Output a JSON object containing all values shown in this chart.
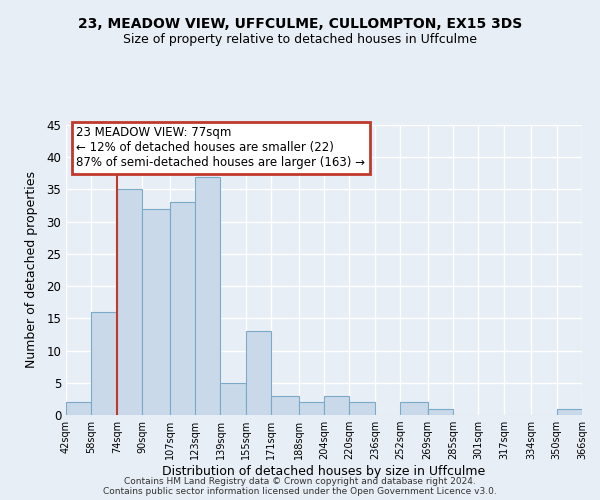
{
  "title": "23, MEADOW VIEW, UFFCULME, CULLOMPTON, EX15 3DS",
  "subtitle": "Size of property relative to detached houses in Uffculme",
  "xlabel": "Distribution of detached houses by size in Uffculme",
  "ylabel": "Number of detached properties",
  "bar_color": "#c9d9ea",
  "bar_edge_color": "#7aaac8",
  "background_color": "#e8eef5",
  "plot_bg_color": "#e8eef5",
  "grid_color": "#ffffff",
  "bin_edges": [
    42,
    58,
    74,
    90,
    107,
    123,
    139,
    155,
    171,
    188,
    204,
    220,
    236,
    252,
    269,
    285,
    301,
    317,
    334,
    350,
    366
  ],
  "bin_labels": [
    "42sqm",
    "58sqm",
    "74sqm",
    "90sqm",
    "107sqm",
    "123sqm",
    "139sqm",
    "155sqm",
    "171sqm",
    "188sqm",
    "204sqm",
    "220sqm",
    "236sqm",
    "252sqm",
    "269sqm",
    "285sqm",
    "301sqm",
    "317sqm",
    "334sqm",
    "350sqm",
    "366sqm"
  ],
  "counts": [
    2,
    16,
    35,
    32,
    33,
    37,
    5,
    13,
    3,
    2,
    3,
    2,
    0,
    2,
    1,
    0,
    0,
    0,
    0,
    1
  ],
  "vline_x": 74,
  "ylim": [
    0,
    45
  ],
  "yticks": [
    0,
    5,
    10,
    15,
    20,
    25,
    30,
    35,
    40,
    45
  ],
  "annotation_title": "23 MEADOW VIEW: 77sqm",
  "annotation_line1": "← 12% of detached houses are smaller (22)",
  "annotation_line2": "87% of semi-detached houses are larger (163) →",
  "annotation_box_color": "#ffffff",
  "annotation_border_color": "#c0392b",
  "vline_color": "#c0392b",
  "footer_line1": "Contains HM Land Registry data © Crown copyright and database right 2024.",
  "footer_line2": "Contains public sector information licensed under the Open Government Licence v3.0."
}
